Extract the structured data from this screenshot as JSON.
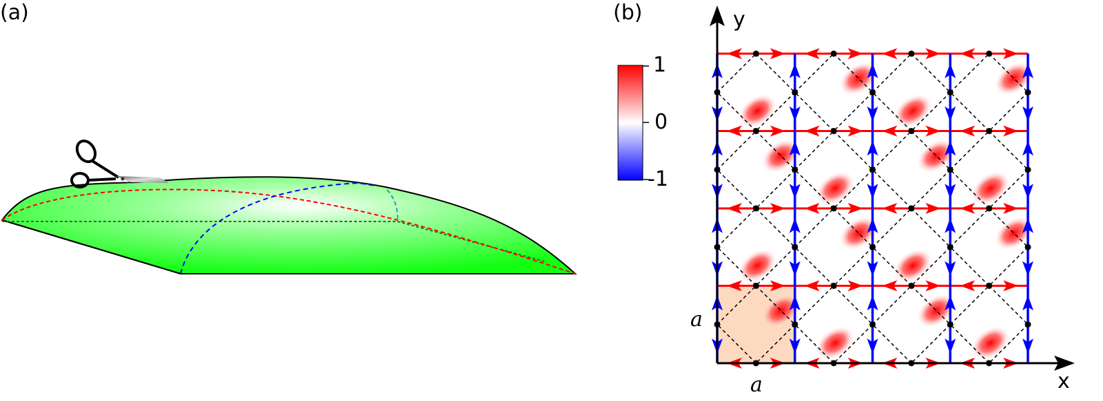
{
  "panels": {
    "a": {
      "label": "(a)"
    },
    "b": {
      "label": "(b)",
      "axis_x": "x",
      "axis_y": "y",
      "lattice_const_x": "a",
      "lattice_const_y": "a",
      "grid_cells": 4,
      "blob_pattern": [
        [
          "LL",
          "UR",
          "LL",
          "UR"
        ],
        [
          "UR",
          "LL",
          "UR",
          "LL"
        ],
        [
          "LL",
          "UR",
          "LL",
          "UR"
        ],
        [
          "UR",
          "LL",
          "UR",
          "LL"
        ]
      ]
    }
  },
  "colorbar": {
    "ticks": [
      "1",
      "0",
      "-1"
    ],
    "colors": {
      "max": "#ff0000",
      "mid": "#ffffff",
      "min": "#0000ff"
    }
  },
  "colors": {
    "surface": "#00ff00",
    "horizontal_bonds": "#ff0000",
    "vertical_bonds": "#0000ff",
    "unit_cell": "#fdd9bf"
  }
}
